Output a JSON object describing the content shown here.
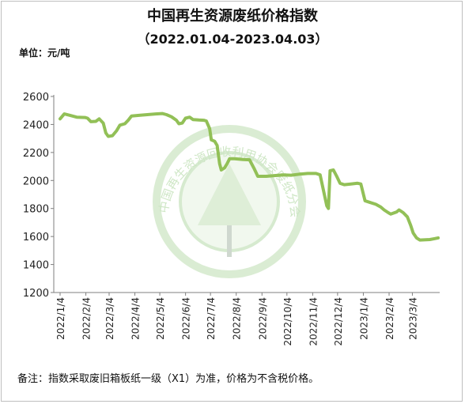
{
  "title": "中国再生资源废纸价格指数",
  "subtitle": "（2022.01.04-2023.04.03）",
  "unit_label": "单位：元/吨",
  "footnote": "备注：指数采取废旧箱板纸一级（X1）为准，价格为不含税价格。",
  "watermark": {
    "text": "中国再生资源回收利用协会废纸分会",
    "color": "#cde6c4"
  },
  "colors": {
    "line": "#92c057",
    "axis_text": "#222222",
    "grid": "#d9d9d9"
  },
  "chart_data": {
    "type": "line",
    "title": "中国再生资源废纸价格指数",
    "subtitle": "（2022.01.04-2023.04.03）",
    "ylabel": "单位：元/吨",
    "ylim": [
      1200,
      2600
    ],
    "yticks": [
      1200,
      1400,
      1600,
      1800,
      2000,
      2200,
      2400,
      2600
    ],
    "xlim": [
      0,
      455
    ],
    "xticks": [
      {
        "x": 0,
        "label": "2022/1/4"
      },
      {
        "x": 31,
        "label": "2022/2/4"
      },
      {
        "x": 59,
        "label": "2022/3/4"
      },
      {
        "x": 90,
        "label": "2022/4/4"
      },
      {
        "x": 120,
        "label": "2022/5/4"
      },
      {
        "x": 151,
        "label": "2022/6/4"
      },
      {
        "x": 181,
        "label": "2022/7/4"
      },
      {
        "x": 212,
        "label": "2022/8/4"
      },
      {
        "x": 243,
        "label": "2022/9/4"
      },
      {
        "x": 273,
        "label": "2022/10/4"
      },
      {
        "x": 304,
        "label": "2022/11/4"
      },
      {
        "x": 334,
        "label": "2022/12/4"
      },
      {
        "x": 365,
        "label": "2023/1/4"
      },
      {
        "x": 396,
        "label": "2023/2/4"
      },
      {
        "x": 424,
        "label": "2023/3/4"
      }
    ],
    "grid": false,
    "series": [
      {
        "name": "",
        "points": [
          [
            0,
            2440
          ],
          [
            5,
            2475
          ],
          [
            12,
            2465
          ],
          [
            20,
            2452
          ],
          [
            30,
            2450
          ],
          [
            33,
            2445
          ],
          [
            37,
            2420
          ],
          [
            43,
            2422
          ],
          [
            47,
            2440
          ],
          [
            52,
            2410
          ],
          [
            55,
            2340
          ],
          [
            58,
            2315
          ],
          [
            63,
            2320
          ],
          [
            68,
            2355
          ],
          [
            72,
            2395
          ],
          [
            78,
            2405
          ],
          [
            82,
            2430
          ],
          [
            86,
            2460
          ],
          [
            95,
            2465
          ],
          [
            105,
            2470
          ],
          [
            115,
            2475
          ],
          [
            123,
            2478
          ],
          [
            128,
            2470
          ],
          [
            134,
            2455
          ],
          [
            140,
            2430
          ],
          [
            143,
            2405
          ],
          [
            147,
            2410
          ],
          [
            151,
            2445
          ],
          [
            156,
            2452
          ],
          [
            160,
            2435
          ],
          [
            167,
            2432
          ],
          [
            173,
            2430
          ],
          [
            176,
            2425
          ],
          [
            180,
            2370
          ],
          [
            182,
            2290
          ],
          [
            186,
            2280
          ],
          [
            189,
            2250
          ],
          [
            192,
            2120
          ],
          [
            194,
            2075
          ],
          [
            198,
            2090
          ],
          [
            201,
            2120
          ],
          [
            204,
            2155
          ],
          [
            210,
            2155
          ],
          [
            220,
            2150
          ],
          [
            228,
            2148
          ],
          [
            234,
            2080
          ],
          [
            238,
            2030
          ],
          [
            248,
            2030
          ],
          [
            258,
            2035
          ],
          [
            268,
            2040
          ],
          [
            278,
            2038
          ],
          [
            288,
            2045
          ],
          [
            298,
            2050
          ],
          [
            308,
            2050
          ],
          [
            313,
            2040
          ],
          [
            321,
            1820
          ],
          [
            323,
            1800
          ],
          [
            325,
            2070
          ],
          [
            329,
            2075
          ],
          [
            333,
            2030
          ],
          [
            337,
            1980
          ],
          [
            342,
            1970
          ],
          [
            350,
            1975
          ],
          [
            358,
            1980
          ],
          [
            362,
            1975
          ],
          [
            367,
            1855
          ],
          [
            372,
            1845
          ],
          [
            380,
            1830
          ],
          [
            386,
            1810
          ],
          [
            390,
            1790
          ],
          [
            395,
            1770
          ],
          [
            398,
            1760
          ],
          [
            405,
            1775
          ],
          [
            408,
            1790
          ],
          [
            413,
            1770
          ],
          [
            418,
            1740
          ],
          [
            422,
            1680
          ],
          [
            425,
            1625
          ],
          [
            429,
            1590
          ],
          [
            433,
            1575
          ],
          [
            445,
            1578
          ],
          [
            451,
            1585
          ],
          [
            455,
            1590
          ]
        ]
      }
    ]
  }
}
